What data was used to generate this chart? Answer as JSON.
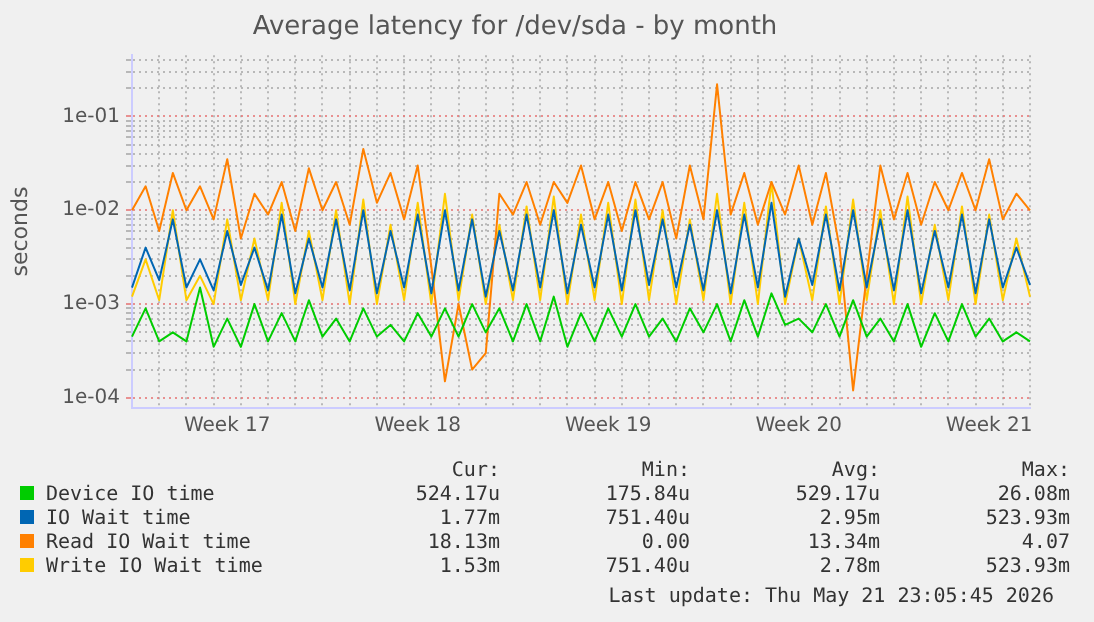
{
  "chart_data": {
    "type": "line",
    "title": "Average latency for /dev/sda - by month",
    "ylabel": "seconds",
    "log": "y",
    "grid": true,
    "legend": "bottom",
    "marker": "none",
    "categories": [
      null,
      null,
      null,
      null,
      null,
      null,
      null,
      "Week 17",
      null,
      null,
      null,
      null,
      null,
      null,
      null,
      null,
      null,
      null,
      null,
      null,
      null,
      "Week 18",
      null,
      null,
      null,
      null,
      null,
      null,
      null,
      null,
      null,
      null,
      null,
      null,
      null,
      "Week 19",
      null,
      null,
      null,
      null,
      null,
      null,
      null,
      null,
      null,
      null,
      null,
      null,
      null,
      "Week 20",
      null,
      null,
      null,
      null,
      null,
      null,
      null,
      null,
      null,
      null,
      null,
      null,
      null,
      "Week 21",
      null,
      null,
      null
    ],
    "ylim": [
      7.8e-05,
      0.45
    ],
    "yticks": [
      {
        "value": 0.0001,
        "label": "1e-04"
      },
      {
        "value": 0.0002,
        "label": null
      },
      {
        "value": 0.0003,
        "label": null
      },
      {
        "value": 0.0004,
        "label": null
      },
      {
        "value": 0.0005,
        "label": null
      },
      {
        "value": 0.0006,
        "label": null
      },
      {
        "value": 0.0007,
        "label": null
      },
      {
        "value": 0.0008,
        "label": null
      },
      {
        "value": 0.0009,
        "label": null
      },
      {
        "value": 0.001,
        "label": "1e-03"
      },
      {
        "value": 0.002,
        "label": null
      },
      {
        "value": 0.003,
        "label": null
      },
      {
        "value": 0.004,
        "label": null
      },
      {
        "value": 0.005,
        "label": null
      },
      {
        "value": 0.006,
        "label": null
      },
      {
        "value": 0.007,
        "label": null
      },
      {
        "value": 0.008,
        "label": null
      },
      {
        "value": 0.009,
        "label": null
      },
      {
        "value": 0.01,
        "label": "1e-02"
      },
      {
        "value": 0.02,
        "label": null
      },
      {
        "value": 0.03,
        "label": null
      },
      {
        "value": 0.04,
        "label": null
      },
      {
        "value": 0.05,
        "label": null
      },
      {
        "value": 0.06,
        "label": null
      },
      {
        "value": 0.07,
        "label": null
      },
      {
        "value": 0.08,
        "label": null
      },
      {
        "value": 0.09,
        "label": null
      },
      {
        "value": 0.1,
        "label": "1e-01"
      },
      {
        "value": 0.2,
        "label": null
      },
      {
        "value": 0.3,
        "label": null
      },
      {
        "value": 0.4,
        "label": null
      }
    ],
    "series": [
      {
        "name": "Device IO time",
        "color": "#00cc00",
        "values": [
          0.00045,
          0.0009,
          0.0004,
          0.0005,
          0.0004,
          0.0015,
          0.00035,
          0.0007,
          0.00035,
          0.001,
          0.0004,
          0.0008,
          0.0004,
          0.0011,
          0.00045,
          0.0007,
          0.0004,
          0.0009,
          0.00045,
          0.0006,
          0.0004,
          0.0008,
          0.00045,
          0.0009,
          0.00045,
          0.001,
          0.0005,
          0.0009,
          0.0004,
          0.001,
          0.0004,
          0.0012,
          0.00035,
          0.0008,
          0.0004,
          0.0009,
          0.00045,
          0.001,
          0.00045,
          0.0007,
          0.0004,
          0.0009,
          0.0005,
          0.001,
          0.0004,
          0.0011,
          0.00045,
          0.0013,
          0.0006,
          0.0007,
          0.0005,
          0.001,
          0.00045,
          0.0011,
          0.00045,
          0.0007,
          0.0004,
          0.001,
          0.00035,
          0.0008,
          0.0004,
          0.001,
          0.00045,
          0.0007,
          0.0004,
          0.0005,
          0.0004
        ]
      },
      {
        "name": "IO Wait time",
        "color": "#0066b3",
        "values": [
          0.0015,
          0.004,
          0.0018,
          0.008,
          0.0015,
          0.003,
          0.0014,
          0.006,
          0.0016,
          0.004,
          0.0014,
          0.009,
          0.0013,
          0.005,
          0.0015,
          0.008,
          0.0014,
          0.01,
          0.0013,
          0.006,
          0.0015,
          0.009,
          0.0013,
          0.01,
          0.0014,
          0.008,
          0.0012,
          0.006,
          0.0014,
          0.009,
          0.0015,
          0.01,
          0.0013,
          0.007,
          0.0015,
          0.009,
          0.0014,
          0.01,
          0.0016,
          0.008,
          0.0015,
          0.007,
          0.0014,
          0.01,
          0.0013,
          0.009,
          0.0015,
          0.012,
          0.0012,
          0.005,
          0.0016,
          0.009,
          0.0014,
          0.01,
          0.0015,
          0.008,
          0.0014,
          0.01,
          0.0013,
          0.006,
          0.0015,
          0.009,
          0.0013,
          0.008,
          0.0015,
          0.004,
          0.0016
        ]
      },
      {
        "name": "Read IO Wait time",
        "color": "#ff8000",
        "values": [
          0.01,
          0.018,
          0.006,
          0.025,
          0.01,
          0.018,
          0.008,
          0.035,
          0.005,
          0.015,
          0.009,
          0.02,
          0.006,
          0.028,
          0.01,
          0.02,
          0.007,
          0.045,
          0.012,
          0.025,
          0.008,
          0.03,
          0.0025,
          0.00015,
          0.001,
          0.0002,
          0.0003,
          0.015,
          0.009,
          0.02,
          0.007,
          0.02,
          0.012,
          0.03,
          0.008,
          0.02,
          0.006,
          0.02,
          0.008,
          0.02,
          0.005,
          0.03,
          0.008,
          0.22,
          0.009,
          0.025,
          0.007,
          0.02,
          0.009,
          0.03,
          0.007,
          0.025,
          0.004,
          0.00012,
          0.002,
          0.03,
          0.008,
          0.025,
          0.007,
          0.02,
          0.01,
          0.025,
          0.01,
          0.035,
          0.008,
          0.015,
          0.01
        ]
      },
      {
        "name": "Write IO Wait time",
        "color": "#ffcc00",
        "values": [
          0.0012,
          0.003,
          0.0011,
          0.01,
          0.0011,
          0.002,
          0.001,
          0.008,
          0.0011,
          0.005,
          0.0011,
          0.012,
          0.001,
          0.006,
          0.0011,
          0.01,
          0.001,
          0.013,
          0.001,
          0.007,
          0.0011,
          0.012,
          0.001,
          0.015,
          0.0011,
          0.009,
          0.001,
          0.007,
          0.0011,
          0.011,
          0.0011,
          0.014,
          0.001,
          0.009,
          0.0011,
          0.012,
          0.001,
          0.013,
          0.0011,
          0.01,
          0.001,
          0.008,
          0.0011,
          0.015,
          0.001,
          0.012,
          0.001,
          0.02,
          0.001,
          0.005,
          0.0011,
          0.011,
          0.001,
          0.013,
          0.0011,
          0.01,
          0.001,
          0.014,
          0.001,
          0.007,
          0.0011,
          0.011,
          0.001,
          0.009,
          0.0011,
          0.005,
          0.0012
        ]
      }
    ],
    "annotations": [
      "Cur:",
      "Min:",
      "Avg:",
      "Max:",
      "524.17u",
      "175.84u",
      "529.17u",
      "26.08m",
      "1.77m",
      "751.40u",
      "2.95m",
      "523.93m",
      "18.13m",
      "0.00",
      "13.34m",
      "4.07",
      "1.53m",
      "751.40u",
      "2.78m",
      "523.93m",
      "Last update: Thu May 21 23:05:45 2026"
    ]
  }
}
